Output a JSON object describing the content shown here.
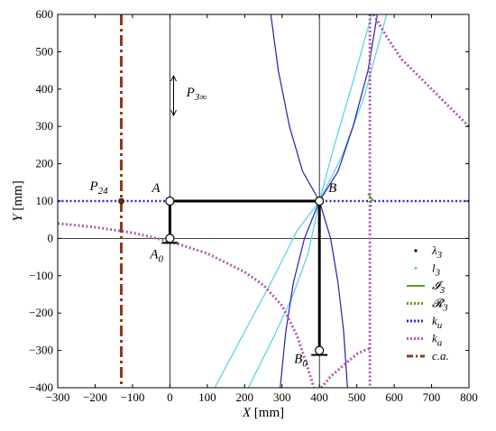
{
  "chart_data": {
    "type": "line",
    "xlabel_var": "X",
    "xlabel_unit": "[mm]",
    "ylabel_var": "Y",
    "ylabel_unit": "[mm]",
    "xlim": [
      -300,
      800
    ],
    "ylim": [
      -400,
      600
    ],
    "x_ticks": [
      -300,
      -200,
      -100,
      0,
      100,
      200,
      300,
      400,
      500,
      600,
      700,
      800
    ],
    "y_ticks": [
      -400,
      -300,
      -200,
      -100,
      0,
      100,
      200,
      300,
      400,
      500,
      600
    ],
    "grid": false,
    "legend_position": "bottom-right",
    "points": [
      {
        "id": "A",
        "label": "A",
        "x": 0,
        "y": 100
      },
      {
        "id": "B",
        "label": "B",
        "x": 400,
        "y": 100
      },
      {
        "id": "A0",
        "label": "A",
        "sub": "0",
        "x": 0,
        "y": 0
      },
      {
        "id": "B0",
        "label": "B",
        "sub": "0",
        "x": 400,
        "y": -300
      },
      {
        "id": "P24",
        "label": "P",
        "sub": "24",
        "x": -130,
        "y": 100
      }
    ],
    "annotation": {
      "label": "P",
      "sub": "3∞",
      "x": 20,
      "y": 380
    },
    "links": [
      {
        "from": [
          0,
          100
        ],
        "to": [
          400,
          100
        ]
      },
      {
        "from": [
          0,
          0
        ],
        "to": [
          0,
          100
        ]
      },
      {
        "from": [
          400,
          -300
        ],
        "to": [
          400,
          100
        ]
      }
    ],
    "series": [
      {
        "name": "λ",
        "sub": "3",
        "style": "dot",
        "color": "#000000"
      },
      {
        "name": "l",
        "sub": "3",
        "style": "dot",
        "color": "#5fd3e8"
      },
      {
        "name": "𝓘",
        "sub": "3",
        "style": "solid",
        "color": "#5a9a1e"
      },
      {
        "name": "𝓡",
        "sub": "3",
        "style": "dotted",
        "color": "#5a9a1e"
      },
      {
        "name": "k",
        "sub": "u",
        "style": "dotted",
        "color": "#2f2fc8"
      },
      {
        "name": "k",
        "sub": "a",
        "style": "dotted",
        "color": "#b05ab0"
      },
      {
        "name": "c.a.",
        "style": "dashdot",
        "color": "#8b3a1a"
      }
    ],
    "curves": {
      "ca_x": -130,
      "ku_y": 100,
      "ka_branch_left": [
        [
          -300,
          40
        ],
        [
          -200,
          30
        ],
        [
          -100,
          15
        ],
        [
          0,
          -8
        ],
        [
          100,
          -40
        ],
        [
          200,
          -90
        ],
        [
          250,
          -125
        ],
        [
          300,
          -180
        ],
        [
          340,
          -260
        ],
        [
          370,
          -350
        ],
        [
          385,
          -400
        ]
      ],
      "ka_vertical_x": 535,
      "ka_branch_right": [
        [
          545,
          600
        ],
        [
          580,
          540
        ],
        [
          620,
          480
        ],
        [
          680,
          420
        ],
        [
          740,
          360
        ],
        [
          800,
          300
        ]
      ],
      "ka_bottom_tail": [
        [
          405,
          -400
        ],
        [
          430,
          -370
        ],
        [
          470,
          -335
        ],
        [
          500,
          -310
        ],
        [
          520,
          -300
        ],
        [
          535,
          -295
        ]
      ],
      "blue_curve_1": [
        [
          270,
          600
        ],
        [
          290,
          450
        ],
        [
          320,
          300
        ],
        [
          355,
          180
        ],
        [
          400,
          100
        ],
        [
          430,
          0
        ],
        [
          450,
          -120
        ],
        [
          465,
          -250
        ],
        [
          475,
          -400
        ]
      ],
      "blue_curve_2": [
        [
          555,
          600
        ],
        [
          530,
          450
        ],
        [
          490,
          300
        ],
        [
          450,
          180
        ],
        [
          400,
          100
        ],
        [
          360,
          0
        ],
        [
          330,
          -120
        ],
        [
          310,
          -250
        ],
        [
          295,
          -400
        ]
      ],
      "cyan_curve_1": [
        [
          120,
          -400
        ],
        [
          200,
          -250
        ],
        [
          280,
          -100
        ],
        [
          340,
          20
        ],
        [
          400,
          100
        ],
        [
          460,
          220
        ],
        [
          520,
          380
        ],
        [
          580,
          600
        ]
      ],
      "cyan_curve_2": [
        [
          210,
          -400
        ],
        [
          280,
          -260
        ],
        [
          330,
          -150
        ],
        [
          370,
          -40
        ],
        [
          400,
          100
        ],
        [
          440,
          250
        ],
        [
          490,
          420
        ],
        [
          540,
          600
        ]
      ]
    }
  }
}
